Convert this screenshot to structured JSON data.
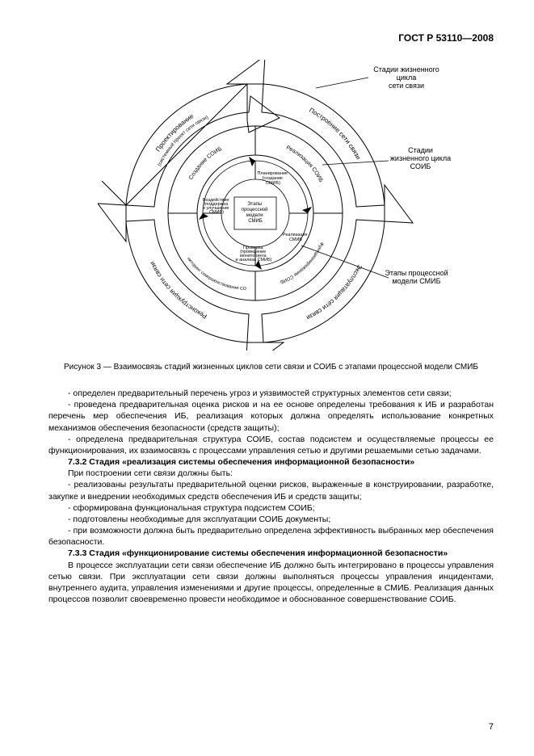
{
  "header": "ГОСТ Р 53110—2008",
  "diagram": {
    "callouts": {
      "top_right": "Стадии жизненного цикла\nсети связи",
      "mid_right": "Стадии\nжизненного цикла\nСОИБ",
      "bot_right": "Этапы процессной\nмодели СМИБ"
    },
    "outer_arrows": {
      "top_left": "Проектирование",
      "top_left_sub": "(системный проект сети связи)",
      "top_right": "Построение сети связи",
      "bot_right": "Эксплуатация сети связи",
      "bot_left": "Реконструкция сети связи"
    },
    "middle_ring": {
      "top_left": "Создание СОИБ",
      "top_right": "Реализация СОИБ",
      "bot_right": "Функционирование СОИБ",
      "bot_left": "Мониторинг совершенствование СОИБ"
    },
    "inner_arrows": {
      "top": "Планирование (создание СМИБ)",
      "right": "Реализация СМИБ",
      "bottom": "Проверка (проведение мониторинга и анализа СМИБ)",
      "left": "Воздействие (поддержка и улучшение СМИБ)"
    },
    "center": "Этапы процессной модели СМИБ"
  },
  "caption": "Рисунок  3  —  Взаимосвязь стадий жизненных циклов сети связи и СОИБ с этапами процессной модели СМИБ",
  "paragraphs": [
    "-  определен предварительный перечень угроз и уязвимостей структурных элементов сети связи;",
    "-  проведена предварительная оценка рисков и на ее основе определены требования к ИБ и разработан перечень мер обеспечения ИБ, реализация которых должна определять использование конкретных механизмов обеспечения безопасности (средств защиты);",
    "-  определена предварительная структура СОИБ, состав подсистем и осуществляемые процессы ее функционирования, их взаимосвязь с процессами управления сетью и другими решаемыми сетью задачами."
  ],
  "section732": {
    "title": "7.3.2  Стадия «реализация системы обеспечения информационной безопасности»",
    "intro": "При построении сети связи должны быть:",
    "items": [
      "-  реализованы результаты предварительной оценки рисков, выраженные в конструировании, разработке, закупке и внедрении необходимых средств обеспечения ИБ и средств защиты;",
      "-  сформирована функциональная структура подсистем СОИБ;",
      "-  подготовлены необходимые для эксплуатации СОИБ документы;",
      "-  при возможности должна быть предварительно определена эффективность выбранных мер обеспечения безопасности."
    ]
  },
  "section733": {
    "title": "7.3.3  Стадия «функционирование системы обеспечения информационной безопасности»",
    "body": "В процессе эксплуатации сети связи обеспечение ИБ должно быть интегрировано в процессы управления сетью связи. При эксплуатации сети связи должны выполняться процессы управления инцидентами, внутреннего аудита, управления изменениями и другие процессы, определенные в СМИБ. Реализация данных процессов позволит своевременно провести необходимое и обоснованное совершенствование СОИБ."
  },
  "page_number": "7",
  "style": {
    "stroke": "#000000",
    "fill_none": "none",
    "bg": "#ffffff"
  }
}
